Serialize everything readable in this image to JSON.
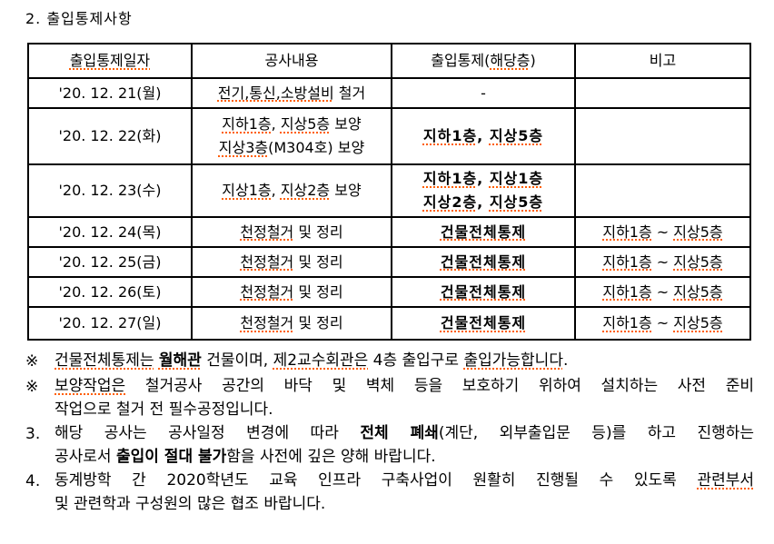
{
  "title": "2. 출입통제사항",
  "colors": {
    "text": "#000000",
    "table_border": "#000000",
    "spell_underline": "#ff5e00",
    "background": "#ffffff"
  },
  "table": {
    "headers": [
      [
        {
          "t": "출입통제일자",
          "u": 1
        }
      ],
      [
        {
          "t": "공사내용"
        }
      ],
      [
        {
          "t": "출입통제("
        },
        {
          "t": "해당층",
          "u": 1
        },
        {
          "t": ")"
        }
      ],
      [
        {
          "t": "비고"
        }
      ]
    ],
    "rows": [
      {
        "date": "'20. 12. 21(월)",
        "work": [
          [
            {
              "t": "전기,통신,소방설비",
              "u": 1
            },
            {
              "t": " 철거"
            }
          ]
        ],
        "control": [
          [
            {
              "t": "-"
            }
          ]
        ],
        "remark": []
      },
      {
        "date": "'20. 12. 22(화)",
        "work": [
          [
            {
              "t": "지하1층",
              "u": 1
            },
            {
              "t": ", "
            },
            {
              "t": "지상5층",
              "u": 1
            },
            {
              "t": " 보양"
            }
          ],
          [
            {
              "t": "지상3층",
              "u": 1
            },
            {
              "t": "(M304호) 보양"
            }
          ]
        ],
        "control": [
          [
            {
              "t": "지하1층",
              "u": 1,
              "b": 1
            },
            {
              "t": ", ",
              "b": 1
            },
            {
              "t": "지상5층",
              "u": 1,
              "b": 1
            }
          ]
        ],
        "remark": []
      },
      {
        "date": "'20. 12. 23(수)",
        "work": [
          [
            {
              "t": "지상1층",
              "u": 1
            },
            {
              "t": ", "
            },
            {
              "t": "지상2층",
              "u": 1
            },
            {
              "t": " 보양"
            }
          ]
        ],
        "control": [
          [
            {
              "t": "지하1층",
              "u": 1,
              "b": 1
            },
            {
              "t": ", ",
              "b": 1
            },
            {
              "t": "지상1층",
              "u": 1,
              "b": 1
            }
          ],
          [
            {
              "t": "지상2층",
              "u": 1,
              "b": 1
            },
            {
              "t": ", ",
              "b": 1
            },
            {
              "t": "지상5층",
              "u": 1,
              "b": 1
            }
          ]
        ],
        "remark": []
      },
      {
        "date": "'20. 12. 24(목)",
        "work": [
          [
            {
              "t": "천정철거",
              "u": 1
            },
            {
              "t": " 및 정리"
            }
          ]
        ],
        "control": [
          [
            {
              "t": "건물전체통제",
              "u": 1,
              "b": 1
            }
          ]
        ],
        "remark": [
          [
            {
              "t": "지하1층",
              "u": 1
            },
            {
              "t": " ~ "
            },
            {
              "t": "지상5층",
              "u": 1
            }
          ]
        ]
      },
      {
        "date": "'20. 12. 25(금)",
        "work": [
          [
            {
              "t": "천정철거",
              "u": 1
            },
            {
              "t": " 및 정리"
            }
          ]
        ],
        "control": [
          [
            {
              "t": "건물전체통제",
              "u": 1,
              "b": 1
            }
          ]
        ],
        "remark": [
          [
            {
              "t": "지하1층",
              "u": 1
            },
            {
              "t": " ~ "
            },
            {
              "t": "지상5층",
              "u": 1
            }
          ]
        ]
      },
      {
        "date": "'20. 12. 26(토)",
        "work": [
          [
            {
              "t": "천정철거",
              "u": 1
            },
            {
              "t": " 및 정리"
            }
          ]
        ],
        "control": [
          [
            {
              "t": "건물전체통제",
              "u": 1,
              "b": 1
            }
          ]
        ],
        "remark": [
          [
            {
              "t": "지하1층",
              "u": 1
            },
            {
              "t": " ~ "
            },
            {
              "t": "지상5층",
              "u": 1
            }
          ]
        ]
      },
      {
        "date": "'20. 12. 27(일)",
        "work": [
          [
            {
              "t": "천정철거",
              "u": 1
            },
            {
              "t": " 및 정리"
            }
          ]
        ],
        "control": [
          [
            {
              "t": "건물전체통제",
              "u": 1,
              "b": 1
            }
          ]
        ],
        "remark": [
          [
            {
              "t": "지하1층",
              "u": 1
            },
            {
              "t": " ~ "
            },
            {
              "t": "지상5층",
              "u": 1
            }
          ]
        ]
      }
    ]
  },
  "notes": {
    "items": [
      {
        "marker": "※",
        "lines": [
          [
            {
              "t": "건물전체통제는",
              "u": 1
            },
            {
              "t": " "
            },
            {
              "t": "월해관",
              "b": 1,
              "u": 1
            },
            {
              "t": " 건물이며, "
            },
            {
              "t": "제2교수회관은",
              "u": 1
            },
            {
              "t": " 4층 출입구로 "
            },
            {
              "t": "출입가능합니다",
              "u": 1
            },
            {
              "t": "."
            }
          ]
        ]
      },
      {
        "marker": "※",
        "lines": [
          [
            {
              "t": "보양작업은",
              "u": 1
            },
            {
              "t": " 철거공사 공간의 바닥 및 벽체 등을 보호하기 위하여 설치하는 사전 준비"
            }
          ],
          [
            {
              "t": "작업으로 철거 전 필수공정입니다."
            }
          ]
        ]
      },
      {
        "marker": "3.",
        "lines": [
          [
            {
              "t": "해당 공사는 공사일정 변경에 따라 "
            },
            {
              "t": "전체 폐쇄",
              "b": 1
            },
            {
              "t": "(계단, 외부출입문 등)를 하고 진행하는"
            }
          ],
          [
            {
              "t": "공사로서 "
            },
            {
              "t": "출입이 절대 불가",
              "b": 1
            },
            {
              "t": "함을 사전에 깊은 양해 바랍니다."
            }
          ]
        ]
      },
      {
        "marker": "4.",
        "lines": [
          [
            {
              "t": "동계방학 간 2020학년도 교육 인프라 구축사업이 원활히 진행될 수 있도록 "
            },
            {
              "t": "관련부서",
              "u": 1
            }
          ],
          [
            {
              "t": "및 관련학과 구성원의 많은 협조 바랍니다."
            }
          ]
        ]
      }
    ]
  }
}
